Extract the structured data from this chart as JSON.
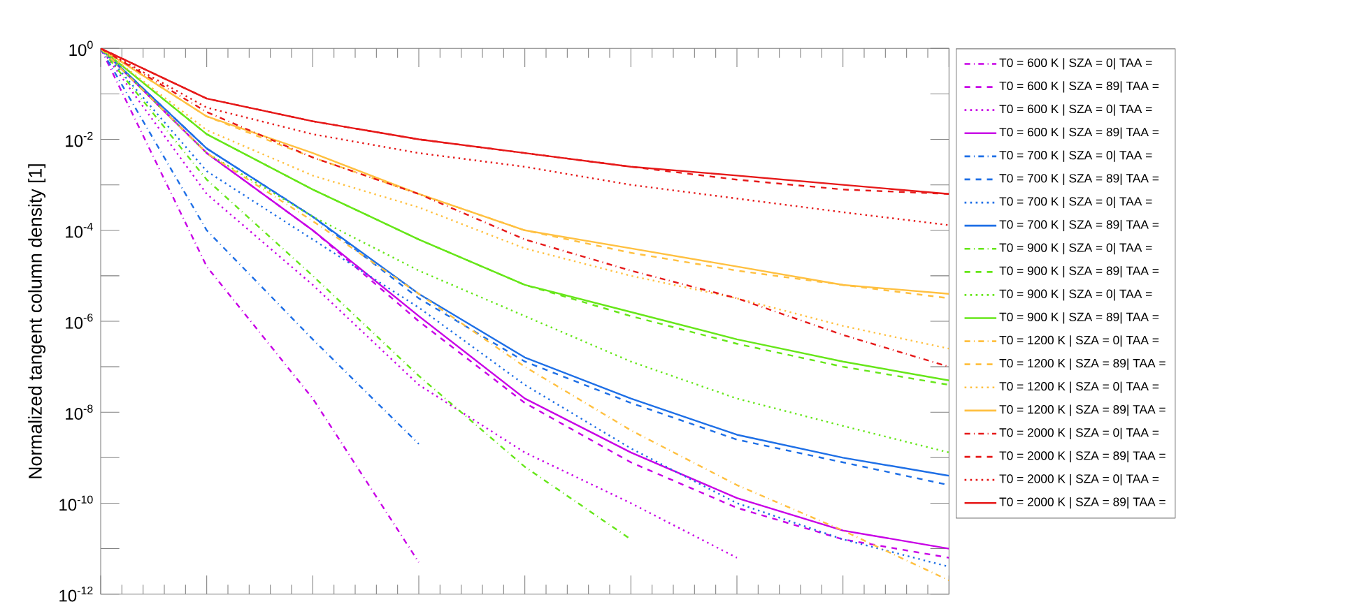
{
  "chart_data": {
    "type": "line",
    "ylabel": "Normalized  tangent column density [1]",
    "log": true,
    "legend": "right",
    "categories": [
      null,
      null,
      null,
      null,
      null,
      null,
      null,
      null,
      null
    ],
    "ylim": [
      1e-12,
      1
    ],
    "yticks": [
      {
        "value": 1,
        "label": "10$^{0}$"
      },
      {
        "value": 0.1,
        "label": null
      },
      {
        "value": 0.01,
        "label": "10$^{-2}$"
      },
      {
        "value": 0.001,
        "label": null
      },
      {
        "value": 0.0001,
        "label": "10$^{-4}$"
      },
      {
        "value": 1e-05,
        "label": null
      },
      {
        "value": 1e-06,
        "label": "10$^{-6}$"
      },
      {
        "value": 1e-07,
        "label": null
      },
      {
        "value": 1e-08,
        "label": "10$^{-8}$"
      },
      {
        "value": 1e-09,
        "label": null
      },
      {
        "value": 1e-10,
        "label": "10$^{-10}$"
      },
      {
        "value": 1e-11,
        "label": null
      },
      {
        "value": 1e-12,
        "label": "10$^{-12}$"
      }
    ],
    "series": [
      {
        "name": "T0 =    600 K | SZA =    0| TAA =",
        "color": "#c800e6",
        "line_style": "dashdot",
        "values": [
          1,
          1.6e-05,
          2e-08,
          5e-12,
          null,
          null,
          null,
          null,
          null
        ]
      },
      {
        "name": "T0 =    600 K | SZA =    89| TAA =",
        "color": "#c800e6",
        "line_style": "dashed",
        "values": [
          1,
          0.005,
          0.0001,
          1e-06,
          1.6e-08,
          7.9e-10,
          7.9e-11,
          1.6e-11,
          6.3e-12
        ]
      },
      {
        "name": "T0 =    600 K | SZA =    0| TAA =",
        "color": "#c800e6",
        "line_style": "dotted",
        "values": [
          1,
          0.00063,
          6.3e-06,
          4e-08,
          1.3e-09,
          1e-10,
          6.3e-12,
          null,
          null
        ]
      },
      {
        "name": "T0 =    600 K | SZA =    89| TAA =",
        "color": "#c800e6",
        "line_style": "solid",
        "values": [
          1,
          0.005,
          0.0001,
          1.3e-06,
          2e-08,
          1.3e-09,
          1.3e-10,
          2.5e-11,
          1e-11
        ]
      },
      {
        "name": "T0 =    700 K | SZA =    0| TAA =",
        "color": "#1e6fe6",
        "line_style": "dashdot",
        "values": [
          1,
          0.0001,
          4e-07,
          2e-09,
          null,
          null,
          null,
          null,
          null
        ]
      },
      {
        "name": "T0 =    700 K | SZA =    89| TAA =",
        "color": "#1e6fe6",
        "line_style": "dashed",
        "values": [
          1,
          0.0063,
          0.0002,
          3.2e-06,
          1.3e-07,
          1.6e-08,
          2.5e-09,
          7.9e-10,
          2.5e-10
        ]
      },
      {
        "name": "T0 =    700 K | SZA =    0| TAA =",
        "color": "#1e6fe6",
        "line_style": "dotted",
        "values": [
          1,
          0.002,
          6.3e-05,
          2e-06,
          4e-08,
          1.6e-09,
          1e-10,
          1.6e-11,
          4e-12
        ]
      },
      {
        "name": "T0 =    700 K | SZA =    89| TAA =",
        "color": "#1e6fe6",
        "line_style": "solid",
        "values": [
          1,
          0.0063,
          0.0002,
          4e-06,
          1.6e-07,
          2e-08,
          3.2e-09,
          1e-09,
          4e-10
        ]
      },
      {
        "name": "T0 =    900 K | SZA =    0| TAA =",
        "color": "#66e619",
        "line_style": "dashdot",
        "values": [
          1,
          0.0013,
          1e-05,
          6.3e-08,
          6.3e-10,
          1.6e-11,
          null,
          null,
          null
        ]
      },
      {
        "name": "T0 =    900 K | SZA =    89| TAA =",
        "color": "#66e619",
        "line_style": "dashed",
        "values": [
          1,
          0.013,
          0.00079,
          6.3e-05,
          6.3e-06,
          1.3e-06,
          3.2e-07,
          1e-07,
          4e-08
        ]
      },
      {
        "name": "T0 =    900 K | SZA =    0| TAA =",
        "color": "#66e619",
        "line_style": "dotted",
        "values": [
          1,
          0.005,
          0.0002,
          1.3e-05,
          1.3e-06,
          1.3e-07,
          2e-08,
          5e-09,
          1.3e-09
        ]
      },
      {
        "name": "T0 =    900 K | SZA =    89| TAA =",
        "color": "#66e619",
        "line_style": "solid",
        "values": [
          1,
          0.013,
          0.00079,
          6.3e-05,
          6.3e-06,
          1.6e-06,
          4e-07,
          1.3e-07,
          5e-08
        ]
      },
      {
        "name": "T0 =    1200 K | SZA =    0| TAA =",
        "color": "#ffc040",
        "line_style": "dashdot",
        "values": [
          1,
          0.005,
          0.00016,
          4e-06,
          1e-07,
          4e-09,
          2.5e-10,
          2.5e-11,
          2e-12
        ]
      },
      {
        "name": "T0 =    1200 K | SZA =    89| TAA =",
        "color": "#ffc040",
        "line_style": "dashed",
        "values": [
          1,
          0.032,
          0.004,
          0.00063,
          0.0001,
          3.2e-05,
          1.3e-05,
          6.3e-06,
          3.2e-06
        ]
      },
      {
        "name": "T0 =    1200 K | SZA =    0| TAA =",
        "color": "#ffc040",
        "line_style": "dotted",
        "values": [
          1,
          0.016,
          0.0016,
          0.00032,
          4e-05,
          1e-05,
          3.2e-06,
          7.9e-07,
          2.5e-07
        ]
      },
      {
        "name": "T0 =    1200 K | SZA =    89| TAA =",
        "color": "#ffc040",
        "line_style": "solid",
        "values": [
          1,
          0.032,
          0.005,
          0.00063,
          0.0001,
          4e-05,
          1.6e-05,
          6.3e-06,
          4e-06
        ]
      },
      {
        "name": "T0 =    2000 K | SZA =    0| TAA =",
        "color": "#e61919",
        "line_style": "dashdot",
        "values": [
          1,
          0.04,
          0.004,
          0.00063,
          6.3e-05,
          1.3e-05,
          3.2e-06,
          5e-07,
          1e-07
        ]
      },
      {
        "name": "T0 =    2000 K | SZA =    89| TAA =",
        "color": "#e61919",
        "line_style": "dashed",
        "values": [
          1,
          0.079,
          0.025,
          0.01,
          0.005,
          0.0025,
          0.0013,
          0.00079,
          0.00063
        ]
      },
      {
        "name": "T0 =    2000 K | SZA =    0| TAA =",
        "color": "#e61919",
        "line_style": "dotted",
        "values": [
          1,
          0.05,
          0.013,
          0.005,
          0.0025,
          0.001,
          0.0005,
          0.00025,
          0.00013
        ]
      },
      {
        "name": "T0 =    2000 K | SZA =    89| TAA =",
        "color": "#e61919",
        "line_style": "solid",
        "values": [
          1,
          0.079,
          0.025,
          0.01,
          0.005,
          0.0025,
          0.0016,
          0.001,
          0.00063
        ]
      }
    ]
  }
}
